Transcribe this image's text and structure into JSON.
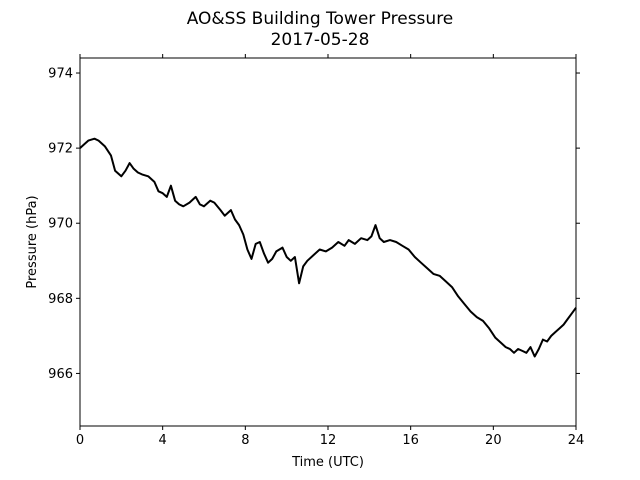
{
  "chart_data": {
    "type": "line",
    "title": "AO&SS Building Tower Pressure",
    "subtitle": "2017-05-28",
    "xlabel": "Time (UTC)",
    "ylabel": "Pressure (hPa)",
    "xlim": [
      0,
      24
    ],
    "ylim": [
      964.6,
      974.4
    ],
    "xticks": [
      0,
      4,
      8,
      12,
      16,
      20,
      24
    ],
    "yticks": [
      966,
      968,
      970,
      972,
      974
    ],
    "grid": false,
    "series": [
      {
        "color": "#000000",
        "x": [
          0,
          0.2,
          0.4,
          0.7,
          0.9,
          1.2,
          1.5,
          1.7,
          2.0,
          2.2,
          2.4,
          2.6,
          2.8,
          3.0,
          3.3,
          3.6,
          3.8,
          4.0,
          4.2,
          4.4,
          4.6,
          4.8,
          5.0,
          5.3,
          5.6,
          5.8,
          6.0,
          6.3,
          6.5,
          6.8,
          7.0,
          7.3,
          7.5,
          7.7,
          7.9,
          8.1,
          8.3,
          8.5,
          8.7,
          8.9,
          9.1,
          9.3,
          9.5,
          9.8,
          10.0,
          10.2,
          10.4,
          10.6,
          10.8,
          11.0,
          11.3,
          11.6,
          11.9,
          12.2,
          12.5,
          12.8,
          13.0,
          13.3,
          13.6,
          13.9,
          14.1,
          14.3,
          14.5,
          14.7,
          15.0,
          15.3,
          15.6,
          15.9,
          16.2,
          16.5,
          16.8,
          17.1,
          17.4,
          17.7,
          18.0,
          18.3,
          18.6,
          18.9,
          19.2,
          19.5,
          19.8,
          20.1,
          20.4,
          20.6,
          20.8,
          21.0,
          21.2,
          21.4,
          21.6,
          21.8,
          22.0,
          22.2,
          22.4,
          22.6,
          22.8,
          23.0,
          23.2,
          23.4,
          23.6,
          23.8,
          24.0
        ],
        "values": [
          972.0,
          972.1,
          972.2,
          972.25,
          972.2,
          972.05,
          971.8,
          971.4,
          971.25,
          971.4,
          971.6,
          971.45,
          971.35,
          971.3,
          971.25,
          971.1,
          970.85,
          970.8,
          970.7,
          971.0,
          970.6,
          970.5,
          970.45,
          970.55,
          970.7,
          970.5,
          970.45,
          970.6,
          970.55,
          970.35,
          970.2,
          970.35,
          970.1,
          969.95,
          969.7,
          969.3,
          969.05,
          969.45,
          969.5,
          969.2,
          968.95,
          969.05,
          969.25,
          969.35,
          969.1,
          969.0,
          969.1,
          968.4,
          968.85,
          969.0,
          969.15,
          969.3,
          969.25,
          969.35,
          969.5,
          969.4,
          969.55,
          969.45,
          969.6,
          969.55,
          969.65,
          969.95,
          969.6,
          969.5,
          969.55,
          969.5,
          969.4,
          969.3,
          969.1,
          968.95,
          968.8,
          968.65,
          968.6,
          968.45,
          968.3,
          968.05,
          967.85,
          967.65,
          967.5,
          967.4,
          967.2,
          966.95,
          966.8,
          966.7,
          966.65,
          966.55,
          966.65,
          966.6,
          966.55,
          966.7,
          966.45,
          966.65,
          966.9,
          966.85,
          967.0,
          967.1,
          967.2,
          967.3,
          967.45,
          967.6,
          967.75
        ]
      }
    ]
  }
}
